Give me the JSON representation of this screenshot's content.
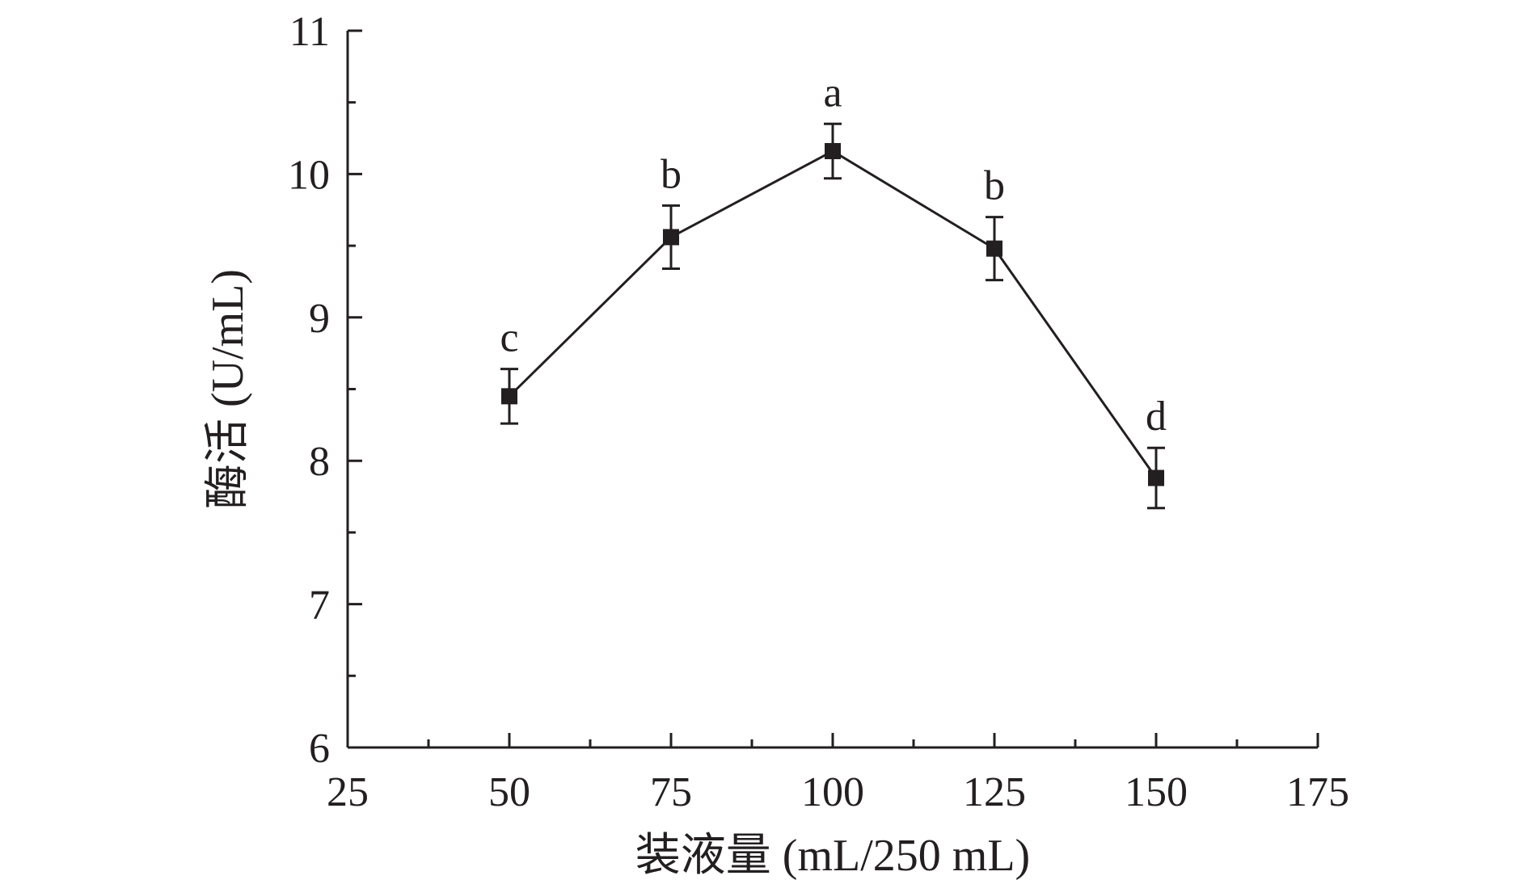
{
  "chart_data": {
    "type": "line",
    "title": "",
    "xlabel": "装液量 (mL/250 mL)",
    "ylabel": "酶活 (U/mL)",
    "xlim": [
      25,
      175
    ],
    "ylim": [
      6,
      11
    ],
    "x_ticks": [
      25,
      50,
      75,
      100,
      125,
      150,
      175
    ],
    "y_ticks": [
      6,
      7,
      8,
      9,
      10,
      11
    ],
    "x_minor_step": 12.5,
    "y_minor_step": 0.5,
    "grid": false,
    "legend": "none",
    "marker": "square",
    "series": [
      {
        "x": [
          50,
          75,
          100,
          125,
          150
        ],
        "values": [
          8.45,
          9.56,
          10.16,
          9.48,
          7.88
        ],
        "errors": [
          0.19,
          0.22,
          0.19,
          0.22,
          0.21
        ],
        "labels": [
          "c",
          "b",
          "a",
          "b",
          "d"
        ]
      }
    ],
    "colors": {
      "ink": "#231f20",
      "background": "#ffffff"
    }
  }
}
